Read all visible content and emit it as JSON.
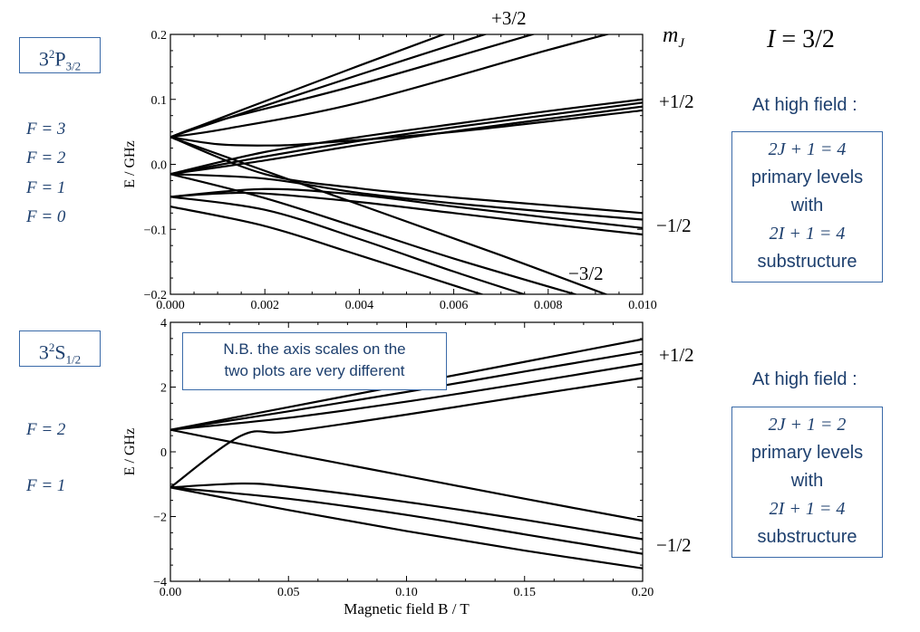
{
  "chart_data": [
    {
      "type": "line",
      "xlim": [
        0,
        0.01
      ],
      "ylim": [
        -0.2,
        0.2
      ],
      "xlabel": "",
      "ylabel": "E / GHz",
      "xticks": [
        "0.000",
        "0.002",
        "0.004",
        "0.006",
        "0.008",
        "0.010"
      ],
      "yticks": [
        "−0.2",
        "−0.1",
        "0.0",
        "0.1",
        "0.2"
      ],
      "grid": false,
      "series": [
        {
          "x": [
            0,
            0.004,
            0.0066
          ],
          "y": [
            0.042,
            0.152,
            0.222
          ]
        },
        {
          "x": [
            0,
            0.004,
            0.0076
          ],
          "y": [
            0.042,
            0.138,
            0.222
          ]
        },
        {
          "x": [
            0,
            0.001,
            0.004,
            0.0087
          ],
          "y": [
            0.042,
            0.067,
            0.123,
            0.222
          ]
        },
        {
          "x": [
            0,
            0.0012,
            0.004,
            0.008,
            0.0104
          ],
          "y": [
            0.042,
            0.055,
            0.095,
            0.176,
            0.222
          ]
        },
        {
          "x": [
            0,
            0.002,
            0.004,
            0.006,
            0.008,
            0.01
          ],
          "y": [
            -0.015,
            0.019,
            0.042,
            0.062,
            0.082,
            0.1
          ]
        },
        {
          "x": [
            0,
            0.002,
            0.004,
            0.006,
            0.008,
            0.01
          ],
          "y": [
            -0.015,
            0.012,
            0.036,
            0.057,
            0.076,
            0.095
          ]
        },
        {
          "x": [
            0,
            0.002,
            0.004,
            0.006,
            0.008,
            0.01
          ],
          "y": [
            -0.015,
            0.006,
            0.03,
            0.051,
            0.07,
            0.089
          ]
        },
        {
          "x": [
            0,
            0.001,
            0.002,
            0.003,
            0.006,
            0.01
          ],
          "y": [
            0.042,
            0.031,
            0.029,
            0.032,
            0.05,
            0.083
          ]
        },
        {
          "x": [
            0,
            0.002,
            0.004,
            0.006,
            0.008,
            0.01
          ],
          "y": [
            0.042,
            -0.015,
            -0.037,
            -0.051,
            -0.063,
            -0.075
          ]
        },
        {
          "x": [
            0,
            0.002,
            0.004,
            0.006,
            0.008,
            0.01
          ],
          "y": [
            -0.015,
            -0.022,
            -0.044,
            -0.06,
            -0.073,
            -0.085
          ]
        },
        {
          "x": [
            0,
            0.002,
            0.004,
            0.006,
            0.008,
            0.01
          ],
          "y": [
            -0.05,
            -0.038,
            -0.047,
            -0.065,
            -0.082,
            -0.098
          ]
        },
        {
          "x": [
            0,
            0.001,
            0.002,
            0.004,
            0.006,
            0.008,
            0.01
          ],
          "y": [
            -0.05,
            -0.045,
            -0.045,
            -0.058,
            -0.075,
            -0.092,
            -0.108
          ]
        },
        {
          "x": [
            0,
            0.004,
            0.007,
            0.0094
          ],
          "y": [
            0.042,
            -0.062,
            -0.14,
            -0.205
          ]
        },
        {
          "x": [
            0,
            0.002,
            0.004,
            0.006,
            0.0088
          ],
          "y": [
            -0.015,
            -0.052,
            -0.098,
            -0.145,
            -0.205
          ]
        },
        {
          "x": [
            0,
            0.002,
            0.004,
            0.006,
            0.0077
          ],
          "y": [
            -0.05,
            -0.07,
            -0.115,
            -0.165,
            -0.205
          ]
        },
        {
          "x": [
            0,
            0.002,
            0.004,
            0.0068
          ],
          "y": [
            -0.065,
            -0.095,
            -0.14,
            -0.205
          ]
        }
      ]
    },
    {
      "type": "line",
      "xlim": [
        0,
        0.2
      ],
      "ylim": [
        -4,
        4
      ],
      "xlabel": "Magnetic field B / T",
      "ylabel": "E / GHz",
      "xticks": [
        "0.00",
        "0.05",
        "0.10",
        "0.15",
        "0.20"
      ],
      "yticks": [
        "−4",
        "−2",
        "0",
        "2",
        "4"
      ],
      "grid": false,
      "series": [
        {
          "x": [
            0,
            0.05,
            0.1,
            0.15,
            0.2
          ],
          "y": [
            0.68,
            1.38,
            2.08,
            2.78,
            3.48
          ]
        },
        {
          "x": [
            0,
            0.05,
            0.1,
            0.15,
            0.2
          ],
          "y": [
            0.68,
            1.25,
            1.85,
            2.48,
            3.1
          ]
        },
        {
          "x": [
            0,
            0.05,
            0.1,
            0.15,
            0.2
          ],
          "y": [
            0.68,
            1.05,
            1.55,
            2.12,
            2.72
          ]
        },
        {
          "x": [
            0,
            0.03,
            0.05,
            0.1,
            0.15,
            0.2
          ],
          "y": [
            -1.1,
            0.5,
            0.62,
            1.15,
            1.72,
            2.28
          ]
        },
        {
          "x": [
            0,
            0.05,
            0.1,
            0.15,
            0.2
          ],
          "y": [
            0.68,
            -0.05,
            -0.75,
            -1.45,
            -2.13
          ]
        },
        {
          "x": [
            0,
            0.03,
            0.05,
            0.1,
            0.15,
            0.2
          ],
          "y": [
            -1.1,
            -0.98,
            -1.08,
            -1.55,
            -2.1,
            -2.7
          ]
        },
        {
          "x": [
            0,
            0.05,
            0.1,
            0.15,
            0.2
          ],
          "y": [
            -1.1,
            -1.45,
            -1.95,
            -2.55,
            -3.15
          ]
        },
        {
          "x": [
            0,
            0.05,
            0.1,
            0.15,
            0.2
          ],
          "y": [
            -1.1,
            -1.8,
            -2.45,
            -3.05,
            -3.6
          ]
        }
      ]
    }
  ],
  "labels": {
    "top_state": "3²P₃/₂",
    "bottom_state": "3²S₁/₂",
    "top_F": [
      "F = 3",
      "F = 2",
      "F = 1",
      "F = 0"
    ],
    "bottom_F": [
      "F = 2",
      "F = 1"
    ],
    "mj_header": "mJ",
    "I_label": "I = 3/2",
    "mj_top": [
      "+3/2",
      "+1/2",
      "−1/2",
      "−3/2"
    ],
    "mj_bottom": [
      "+1/2",
      "−1/2"
    ],
    "note": [
      "N.B. the axis scales on the",
      "two plots are very different"
    ],
    "high_field": "At high field :",
    "top_box": [
      "2J + 1 = 4",
      "primary levels",
      "with",
      "2I + 1 = 4",
      "substructure"
    ],
    "bottom_box": [
      "2J + 1 = 2",
      "primary levels",
      "with",
      "2I + 1 = 4",
      "substructure"
    ]
  }
}
